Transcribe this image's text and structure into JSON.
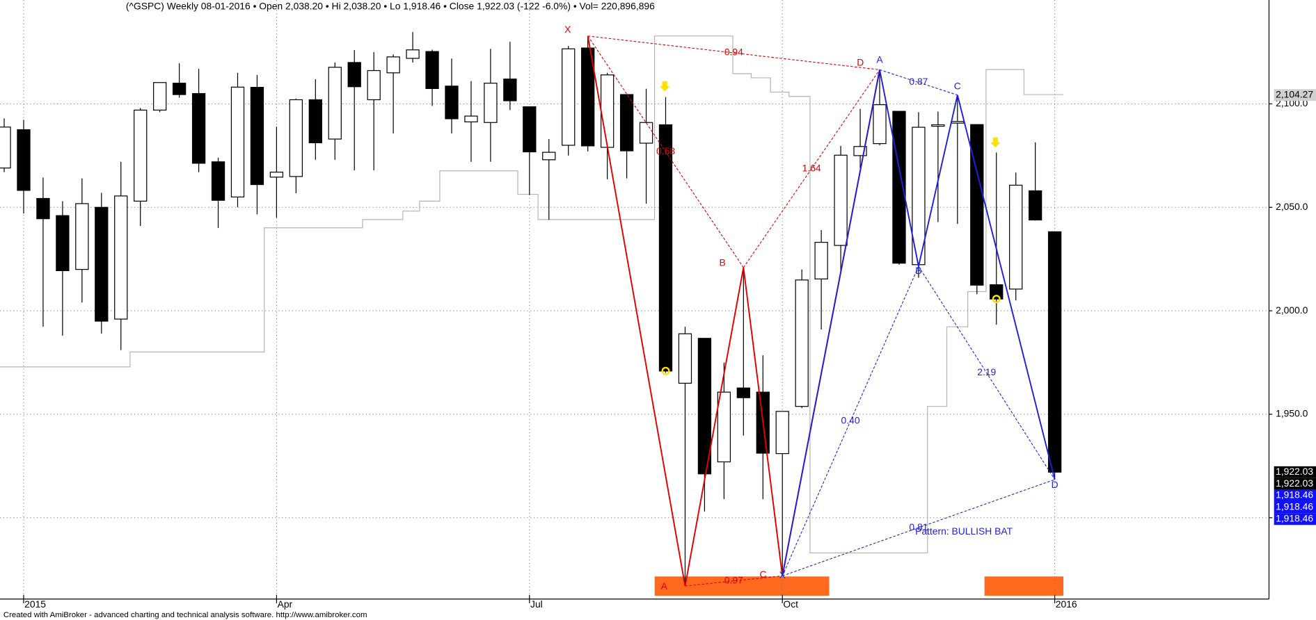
{
  "chart_data": {
    "type": "candlestick",
    "title": "(^GSPC) Weekly  08-01-2016  •  Open 2,038.20  •  Hi 2,038.20  •  Lo 1,918.46  •  Close 1,922.03 (-122 -6.0%)  •  Vol= 220,896,896",
    "footer": "Created with AmiBroker - advanced charting and technical analysis software. http://www.amibroker.com",
    "categories": [
      null,
      "2015",
      null,
      null,
      null,
      null,
      null,
      null,
      null,
      null,
      null,
      null,
      null,
      null,
      "Apr",
      null,
      null,
      null,
      null,
      null,
      null,
      null,
      null,
      null,
      null,
      null,
      null,
      "Jul",
      null,
      null,
      null,
      null,
      null,
      null,
      null,
      null,
      null,
      null,
      null,
      null,
      "Oct",
      null,
      null,
      null,
      null,
      null,
      null,
      null,
      null,
      null,
      null,
      null,
      null,
      null,
      "2016"
    ],
    "open": [
      2069,
      2087.5,
      2054.3,
      2046,
      2020,
      2050,
      1996,
      2053,
      2097,
      2110,
      2105,
      2072,
      2055,
      2108,
      2064.6,
      2064.9,
      2102,
      2083,
      2120,
      2102,
      2115,
      2122,
      2125.3,
      2108.6,
      2091.3,
      2091,
      2112,
      2098.6,
      2073,
      2080,
      2127,
      2079,
      2104.5,
      2081,
      2089.9,
      1965,
      1986.7,
      1927,
      1962.7,
      1960.7,
      1931,
      1953.8,
      2015.4,
      2031.6,
      2075,
      2080.8,
      2096.4,
      2022.3,
      2089.2,
      2090.7,
      2090,
      2012.6,
      2010.5,
      2058,
      2038.2
    ],
    "high": [
      2093,
      2092.3,
      2064.4,
      2053,
      2064,
      2057,
      2072,
      2098,
      2110.3,
      2119.6,
      2117,
      2074,
      2115,
      2114,
      2089,
      2102.6,
      2111.9,
      2120,
      2126,
      2125,
      2123.9,
      2134.7,
      2126.2,
      2121.9,
      2111,
      2126.6,
      2130,
      2098.6,
      2083,
      2128,
      2132.8,
      2115,
      2104.5,
      2107.3,
      2103.3,
      1992.3,
      1986.7,
      1975,
      2020.9,
      1978.5,
      1951.4,
      2020,
      2039,
      2079.7,
      2097.6,
      2116.5,
      2096.4,
      2096,
      2096.3,
      2104.27,
      2090,
      2076.5,
      2066.8,
      2081.4,
      2038.2
    ],
    "low": [
      2067,
      2047,
      1992.3,
      1988,
      2004,
      1989,
      1981,
      2041,
      2096,
      2103,
      2067,
      2040,
      2050,
      2046.6,
      2045,
      2056.8,
      2073,
      2073,
      2067.9,
      2067.9,
      2085.7,
      2120,
      2099,
      2085.7,
      2072,
      2072,
      2097,
      2056,
      2044,
      2075,
      2077,
      2063.6,
      2064,
      2051.8,
      1970,
      1867,
      1903,
      1909,
      1939.7,
      1909,
      1871.9,
      1953,
      1991,
      2019,
      2069,
      2080,
      2022.3,
      2016,
      2042.9,
      2042,
      2008,
      1993.3,
      2005,
      2043.6,
      1918.46
    ],
    "close": [
      2088.8,
      2058.2,
      2044.5,
      2019.4,
      2051.8,
      1995,
      2055.5,
      2097,
      2110.3,
      2104.5,
      2071.3,
      2053.4,
      2108.1,
      2061,
      2067,
      2102,
      2081.2,
      2117.7,
      2108.3,
      2116.1,
      2122.7,
      2126.1,
      2107.4,
      2092.8,
      2094.1,
      2110,
      2101.5,
      2076.8,
      2076.6,
      2126.6,
      2079.7,
      2114,
      2077.3,
      2091,
      1970.9,
      1988.9,
      1921.2,
      1960.7,
      1958,
      1931.2,
      1951.4,
      2014.9,
      2033.1,
      2075.2,
      2079.4,
      2099.6,
      2023,
      2088.7,
      2089.9,
      2091.5,
      2012.4,
      2005.7,
      2060.7,
      2043.9,
      1922.03
    ],
    "up_color": "#ffffff",
    "down_color": "#000000",
    "ylim": [
      1860.7,
      2150.2
    ],
    "yticks": [
      {
        "value": 1900,
        "label": null
      },
      {
        "value": 1950,
        "label": "1,950.0"
      },
      {
        "value": 2000,
        "label": "2,000.0"
      },
      {
        "value": 2050,
        "label": "2,050.0"
      },
      {
        "value": 2100,
        "label": "2,100.0"
      }
    ],
    "grid": true,
    "overlay": {
      "color": "#b4b4b4",
      "x": [
        -0.22,
        6.47,
        6.47,
        13.37,
        13.37,
        18.42,
        18.42,
        20.49,
        20.49,
        21.35,
        21.35,
        22.39,
        22.39,
        26.4,
        26.4,
        27.44,
        27.44,
        33.43,
        33.43,
        37.45,
        37.45,
        38.4,
        38.4,
        39.39,
        39.39,
        40.34,
        40.34,
        41.42,
        41.42,
        47.46,
        47.46,
        48.45,
        48.45,
        49.53,
        49.53,
        50.47,
        50.47,
        52.42,
        52.42,
        54.45
      ],
      "values": [
        1972.9,
        1972.9,
        1980.1,
        1980.1,
        2040.1,
        2040.1,
        2044.1,
        2044.1,
        2048.2,
        2048.2,
        2053,
        2053,
        2067.6,
        2067.6,
        2056.3,
        2056.3,
        2044.1,
        2044.1,
        2132.8,
        2132.8,
        2114.6,
        2114.6,
        2112.6,
        2112.6,
        2105.7,
        2105.7,
        2103.6,
        2103.6,
        1883,
        1883,
        1953.8,
        1953.8,
        1992.3,
        1992.3,
        2009.3,
        2009.3,
        2116.6,
        2116.6,
        2104.5,
        2104.5
      ]
    },
    "patterns": [
      {
        "color": "#e00000",
        "points": [
          {
            "label": "X",
            "x": 30,
            "value": 2132.8
          },
          {
            "label": "A",
            "x": 35,
            "value": 1867
          },
          {
            "label": "B",
            "x": 38,
            "value": 2020.9
          },
          {
            "label": "C",
            "x": 40,
            "value": 1871.9
          },
          {
            "label": "D",
            "x": 45,
            "value": 2116.5
          }
        ],
        "ratios": {
          "XB": "0.58",
          "AC": "0.97",
          "BD": "1.64",
          "XD": "0.94"
        }
      },
      {
        "color": "#2020e0",
        "name": "Pattern: BULLISH BAT",
        "points": [
          {
            "label": "X",
            "x": 40,
            "value": 1871.9
          },
          {
            "label": "A",
            "x": 45,
            "value": 2116.5
          },
          {
            "label": "B",
            "x": 47,
            "value": 2021.5
          },
          {
            "label": "C",
            "x": 49,
            "value": 2104.27
          },
          {
            "label": "D",
            "x": 54,
            "value": 1918.46
          }
        ],
        "ratios": {
          "XB": "0.40",
          "AC": "0.87",
          "BD": "2.19",
          "XD": "0.81"
        }
      }
    ],
    "price_labels": [
      {
        "value": 2104.27,
        "label": "2,104.27",
        "fill": "#d0d0d0",
        "text_color": "#000000"
      },
      {
        "value": 1922.03,
        "label": "1,922.03",
        "fill": "#000000",
        "text_color": "#ffffff"
      },
      {
        "value": 1922.03,
        "label": "1,922.03",
        "fill": "#000000",
        "text_color": "#ffffff"
      },
      {
        "value": 1918.46,
        "label": "1,918.46",
        "fill": "#1010ff",
        "text_color": "#ffffff"
      },
      {
        "value": 1918.46,
        "label": "1,918.46",
        "fill": "#1010ff",
        "text_color": "#ffffff"
      },
      {
        "value": 1918.46,
        "label": "1,918.46",
        "fill": "#1010ff",
        "text_color": "#ffffff"
      }
    ]
  }
}
